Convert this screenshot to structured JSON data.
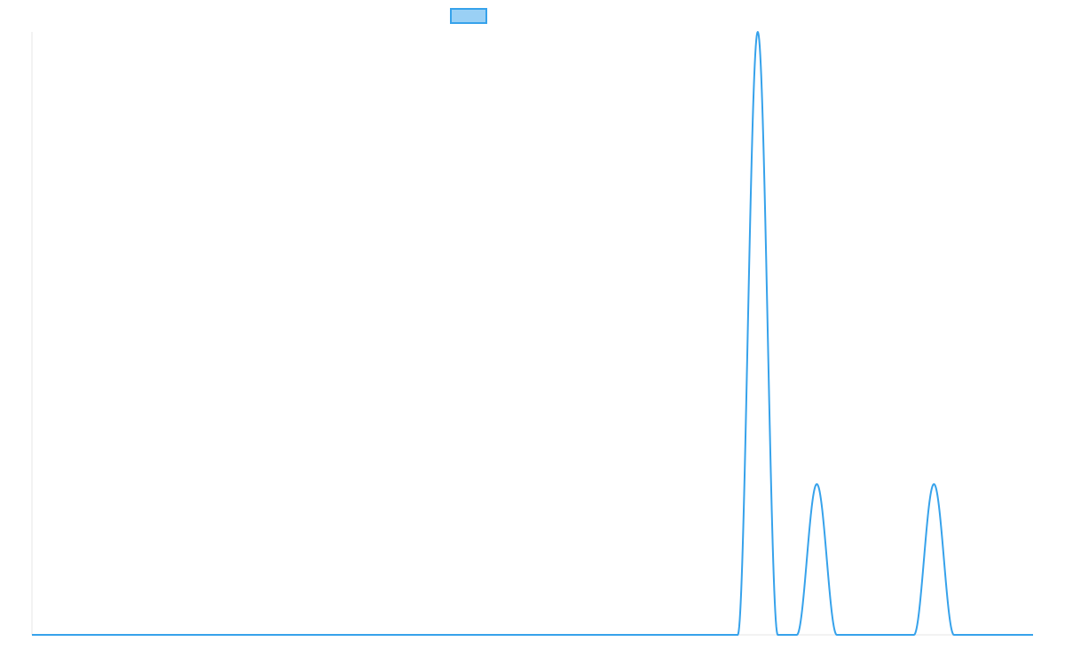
{
  "chart_data": {
    "type": "line",
    "title": "",
    "xlabel": "",
    "ylabel": "",
    "legend": {
      "placement": "top-center",
      "entries": [
        ""
      ]
    },
    "colors": {
      "line": "#36a2eb",
      "legend_fill": "#9ad0f5",
      "axis": "#e5e5e5"
    },
    "grid": false,
    "xlim": [
      0,
      1000
    ],
    "ylim": [
      0,
      1
    ],
    "series": [
      {
        "peaks": [
          {
            "center": 725,
            "half_width": 20,
            "height": 1.0
          },
          {
            "center": 784,
            "half_width": 20,
            "height": 0.25
          },
          {
            "center": 901,
            "half_width": 20,
            "height": 0.25
          }
        ]
      }
    ]
  }
}
